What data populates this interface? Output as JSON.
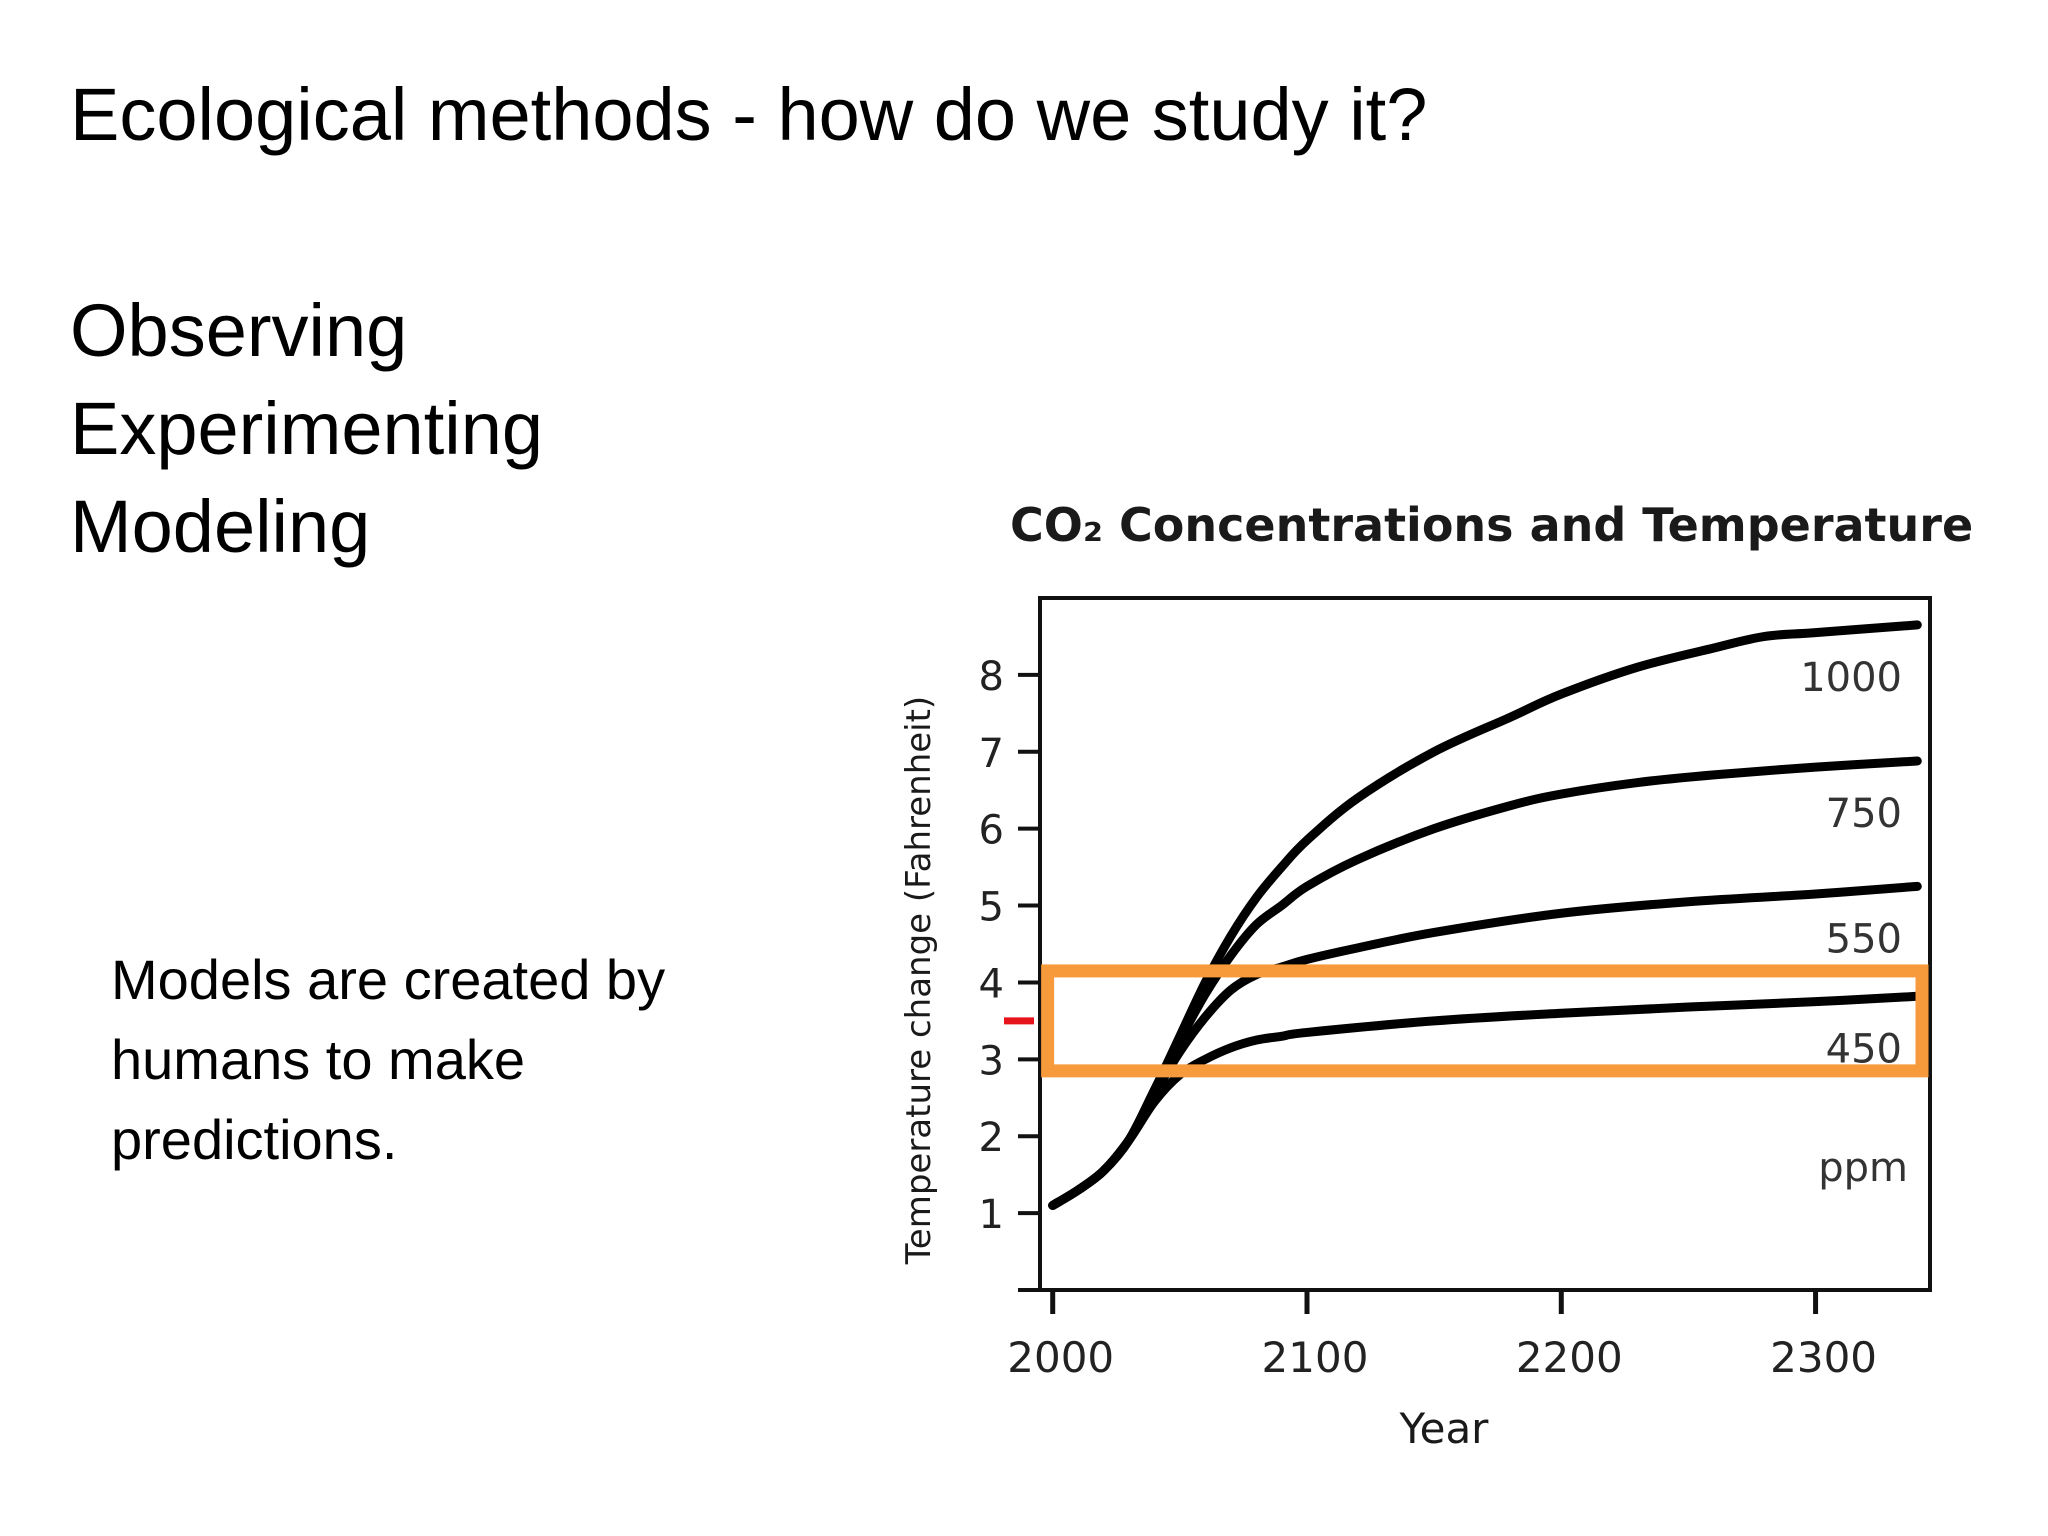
{
  "slide": {
    "title": "Ecological methods - how do we study it?",
    "methods": [
      "Observing",
      "Experimenting",
      "Modeling"
    ],
    "note_lines": [
      "Models are created by",
      "humans to make",
      "predictions."
    ]
  },
  "chart_data": {
    "type": "line",
    "title": "CO₂ Concentrations and Temperature",
    "xlabel": "Year",
    "ylabel": "Temperature change (Fahrenheit)",
    "xlim": [
      1995,
      2345
    ],
    "ylim": [
      0,
      9
    ],
    "xticks": [
      2000,
      2100,
      2200,
      2300
    ],
    "yticks": [
      1,
      2,
      3,
      4,
      5,
      6,
      7,
      8
    ],
    "grid": false,
    "unit_label": "ppm",
    "colors": {
      "series": "#000000",
      "highlight_box": "#F79A3B",
      "marker": "#E8141C"
    },
    "highlight_band": {
      "y_min": 2.85,
      "y_max": 4.15,
      "x_min": 1998,
      "x_max": 2345
    },
    "current_marker_y": 3.5,
    "series": [
      {
        "name": "1000",
        "x": [
          2000,
          2010,
          2020,
          2030,
          2040,
          2050,
          2060,
          2070,
          2080,
          2090,
          2100,
          2120,
          2150,
          2180,
          2200,
          2230,
          2260,
          2280,
          2300,
          2340
        ],
        "values": [
          1.1,
          1.3,
          1.55,
          1.95,
          2.6,
          3.3,
          4.0,
          4.6,
          5.1,
          5.5,
          5.85,
          6.4,
          7.0,
          7.45,
          7.75,
          8.1,
          8.35,
          8.5,
          8.55,
          8.65
        ]
      },
      {
        "name": "750",
        "x": [
          2000,
          2010,
          2020,
          2030,
          2040,
          2050,
          2060,
          2070,
          2080,
          2090,
          2100,
          2120,
          2150,
          2180,
          2200,
          2230,
          2260,
          2300,
          2340
        ],
        "values": [
          1.1,
          1.3,
          1.55,
          1.95,
          2.6,
          3.25,
          3.85,
          4.35,
          4.75,
          5.0,
          5.25,
          5.6,
          6.0,
          6.3,
          6.45,
          6.6,
          6.7,
          6.8,
          6.88
        ]
      },
      {
        "name": "550",
        "x": [
          2000,
          2010,
          2020,
          2030,
          2040,
          2050,
          2060,
          2070,
          2080,
          2090,
          2100,
          2120,
          2150,
          2200,
          2250,
          2300,
          2340
        ],
        "values": [
          1.1,
          1.3,
          1.55,
          1.95,
          2.55,
          3.1,
          3.55,
          3.9,
          4.1,
          4.2,
          4.3,
          4.45,
          4.65,
          4.9,
          5.05,
          5.15,
          5.25
        ]
      },
      {
        "name": "450",
        "x": [
          2000,
          2010,
          2020,
          2030,
          2040,
          2050,
          2060,
          2070,
          2080,
          2090,
          2100,
          2150,
          2200,
          2250,
          2300,
          2340
        ],
        "values": [
          1.1,
          1.3,
          1.55,
          1.95,
          2.45,
          2.8,
          3.0,
          3.15,
          3.25,
          3.3,
          3.35,
          3.5,
          3.6,
          3.68,
          3.75,
          3.82
        ]
      }
    ]
  }
}
